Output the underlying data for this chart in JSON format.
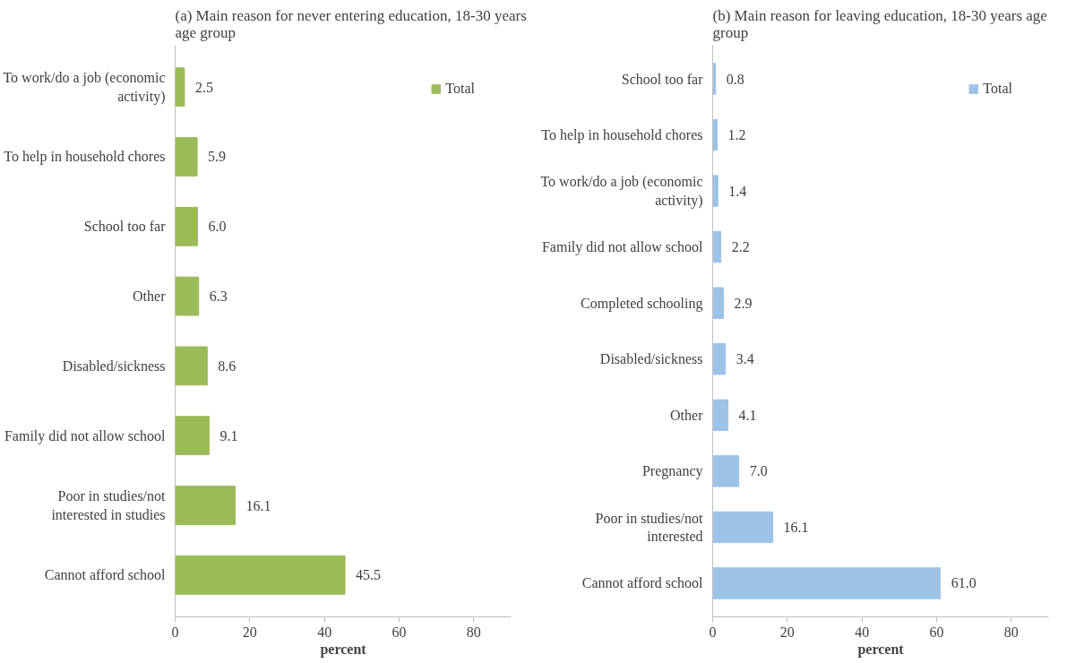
{
  "chart_data": [
    {
      "type": "bar",
      "orientation": "horizontal",
      "title": "(a) Main reason for never entering education, 18-30 years age group",
      "xlabel": "percent",
      "categories": [
        "To work/do a job (economic activity)",
        "To help in household chores",
        "School too far",
        "Other",
        "Disabled/sickness",
        "Family did not allow school",
        "Poor in studies/not interested in studies",
        "Cannot afford school"
      ],
      "series": [
        {
          "name": "Total",
          "color": "#9bbb59",
          "values": [
            2.5,
            5.9,
            6.0,
            6.3,
            8.6,
            9.1,
            16.1,
            45.5
          ],
          "value_labels": [
            "2.5",
            "5.9",
            "6.0",
            "6.3",
            "8.6",
            "9.1",
            "16.1",
            "45.5"
          ]
        }
      ],
      "xlim": [
        0,
        90
      ],
      "xticks": [
        0,
        20,
        40,
        60,
        80
      ],
      "legend": "top right",
      "grid": false
    },
    {
      "type": "bar",
      "orientation": "horizontal",
      "title": "(b) Main reason for leaving education, 18-30 years age group",
      "xlabel": "percent",
      "categories": [
        "School too far",
        "To help in household chores",
        "To work/do a job (economic activity)",
        "Family did not allow school",
        "Completed schooling",
        "Disabled/sickness",
        "Other",
        "Pregnancy",
        "Poor in studies/not interested",
        "Cannot afford school"
      ],
      "series": [
        {
          "name": "Total",
          "color": "#9dc3e6",
          "values": [
            0.8,
            1.2,
            1.4,
            2.2,
            2.9,
            3.4,
            4.1,
            7.0,
            16.1,
            61.0
          ],
          "value_labels": [
            "0.8",
            "1.2",
            "1.4",
            "2.2",
            "2.9",
            "3.4",
            "4.1",
            "7.0",
            "16.1",
            "61.0"
          ]
        }
      ],
      "xlim": [
        0,
        90
      ],
      "xticks": [
        0,
        20,
        40,
        60,
        80
      ],
      "legend": "top right",
      "grid": false
    }
  ]
}
